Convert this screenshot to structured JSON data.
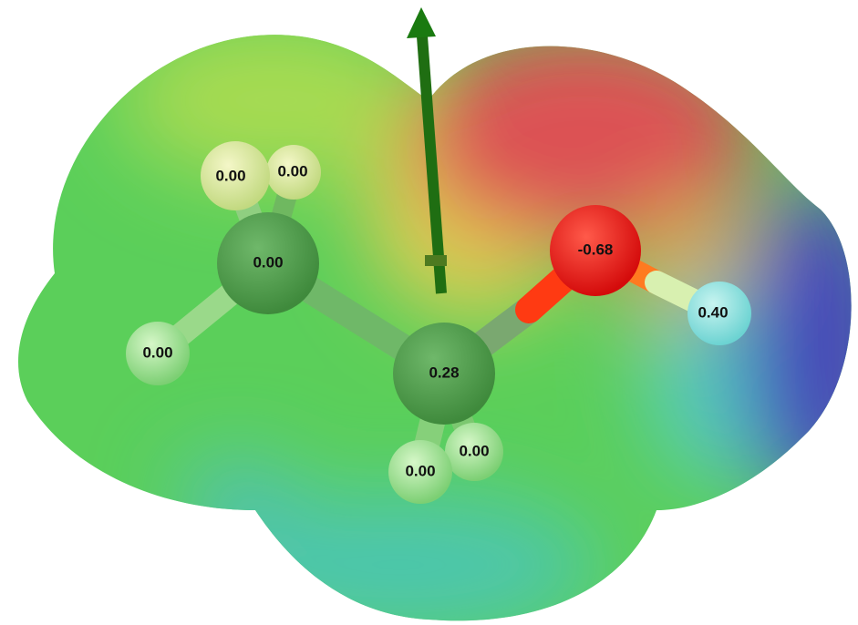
{
  "atoms": [
    {
      "label": "0.00"
    },
    {
      "label": "0.00"
    },
    {
      "label": "0.00"
    },
    {
      "label": "0.00"
    },
    {
      "label": "0.28"
    },
    {
      "label": "-0.68"
    },
    {
      "label": "0.40"
    },
    {
      "label": "0.00"
    },
    {
      "label": "0.00"
    }
  ]
}
